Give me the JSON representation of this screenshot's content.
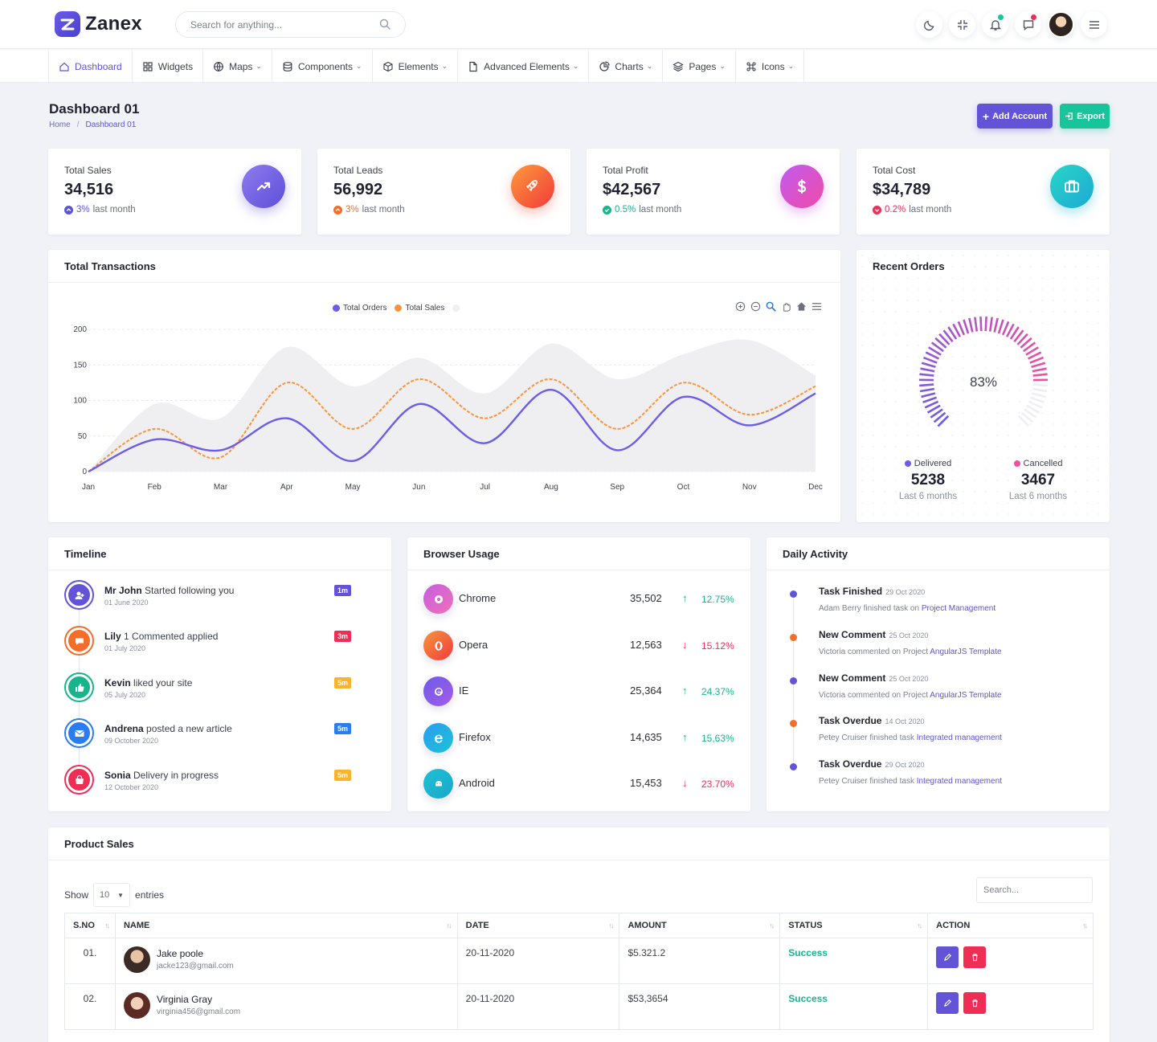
{
  "brand": {
    "name": "Zanex"
  },
  "header": {
    "search_placeholder": "Search for anything...",
    "accent": "#5c54d6"
  },
  "nav": [
    {
      "label": "Dashboard",
      "icon": "home-icon",
      "active": true
    },
    {
      "label": "Widgets",
      "icon": "grid-icon"
    },
    {
      "label": "Maps",
      "icon": "globe-icon"
    },
    {
      "label": "Components",
      "icon": "database-icon"
    },
    {
      "label": "Elements",
      "icon": "box-icon"
    },
    {
      "label": "Advanced Elements",
      "icon": "file-icon"
    },
    {
      "label": "Charts",
      "icon": "pie-chart-icon"
    },
    {
      "label": "Pages",
      "icon": "layers-icon"
    },
    {
      "label": "Icons",
      "icon": "command-icon"
    }
  ],
  "page": {
    "title": "Dashboard 01",
    "breadcrumb": [
      "Home",
      "Dashboard 01"
    ],
    "add_account": "Add Account",
    "export": "Export"
  },
  "stats": [
    {
      "label": "Total Sales",
      "value": "34,516",
      "change": "3%",
      "suffix": "last month",
      "trend": "up",
      "trend_color": "#5c54d6",
      "icon": "trending-up-icon"
    },
    {
      "label": "Total Leads",
      "value": "56,992",
      "change": "3%",
      "suffix": "last month",
      "trend": "up",
      "trend_color": "#f46e2a",
      "icon": "rocket-icon"
    },
    {
      "label": "Total Profit",
      "value": "$42,567",
      "change": "0.5%",
      "suffix": "last month",
      "trend": "check",
      "trend_color": "#18b58c",
      "icon": "dollar-icon"
    },
    {
      "label": "Total Cost",
      "value": "$34,789",
      "change": "0.2%",
      "suffix": "last month",
      "trend": "down",
      "trend_color": "#ef2e55",
      "icon": "briefcase-icon"
    }
  ],
  "transactions": {
    "title": "Total Transactions"
  },
  "chart_data": {
    "type": "line",
    "title": "",
    "categories": [
      "Jan",
      "Feb",
      "Mar",
      "Apr",
      "May",
      "Jun",
      "Jul",
      "Aug",
      "Sep",
      "Oct",
      "Nov",
      "Dec"
    ],
    "series": [
      {
        "name": "Total Orders",
        "color": "#6c5ce7",
        "values": [
          0,
          45,
          30,
          75,
          15,
          95,
          40,
          115,
          30,
          105,
          65,
          110
        ]
      },
      {
        "name": "Total Sales",
        "color": "#f7953c",
        "values": [
          0,
          60,
          20,
          125,
          60,
          130,
          75,
          130,
          60,
          125,
          80,
          120
        ]
      }
    ],
    "area_values": [
      0,
      95,
      75,
      175,
      120,
      160,
      110,
      180,
      130,
      165,
      185,
      135
    ],
    "yticks": [
      0,
      50,
      100,
      150,
      200
    ],
    "ylim": [
      0,
      200
    ],
    "xlabel": "",
    "ylabel": ""
  },
  "recent_orders": {
    "title": "Recent Orders",
    "percent_label": "83%",
    "percent": 83,
    "delivered": {
      "label": "Delivered",
      "value": "5238",
      "sub": "Last 6 months",
      "color": "#6c5ce7"
    },
    "cancelled": {
      "label": "Cancelled",
      "value": "3467",
      "sub": "Last 6 months",
      "color": "#f14fa0"
    }
  },
  "timeline": {
    "title": "Timeline",
    "items": [
      {
        "name": "Mr John",
        "text": "Started following you",
        "date": "01 June 2020",
        "badge": "1m",
        "badge_color": "#6354d7",
        "color": "#6354d7",
        "icon": "user-plus-icon"
      },
      {
        "name": "Lily",
        "text": "1 Commented applied",
        "date": "01 July 2020",
        "badge": "3m",
        "badge_color": "#ef2e55",
        "color": "#f46e2a",
        "icon": "chat-icon"
      },
      {
        "name": "Kevin",
        "text": "liked your site",
        "date": "05 July 2020",
        "badge": "5m",
        "badge_color": "#fbb32b",
        "color": "#18b58c",
        "icon": "thumbs-up-icon"
      },
      {
        "name": "Andrena",
        "text": "posted a new article",
        "date": "09 October 2020",
        "badge": "5m",
        "badge_color": "#2a7df0",
        "color": "#2a7df0",
        "icon": "mail-icon"
      },
      {
        "name": "Sonia",
        "text": "Delivery in progress",
        "date": "12 October 2020",
        "badge": "5m",
        "badge_color": "#fbb32b",
        "color": "#ef2e55",
        "icon": "bag-icon"
      }
    ]
  },
  "browser": {
    "title": "Browser Usage",
    "items": [
      {
        "name": "Chrome",
        "value": "35,502",
        "pct": "12.75%",
        "dir": "up",
        "color1": "#c45ee0",
        "color2": "#f070b8",
        "icon": "chrome-icon"
      },
      {
        "name": "Opera",
        "value": "12,563",
        "pct": "15.12%",
        "dir": "down",
        "color1": "#f7953c",
        "color2": "#ef3b3b",
        "icon": "opera-icon"
      },
      {
        "name": "IE",
        "value": "25,364",
        "pct": "24.37%",
        "dir": "up",
        "color1": "#6c5ce7",
        "color2": "#a35bea",
        "icon": "ie-icon"
      },
      {
        "name": "Firefox",
        "value": "14,635",
        "pct": "15,63%",
        "dir": "up",
        "color1": "#2a9df0",
        "color2": "#1ec2d6",
        "icon": "edge-icon"
      },
      {
        "name": "Android",
        "value": "15,453",
        "pct": "23.70%",
        "dir": "down",
        "color1": "#1ec2d6",
        "color2": "#1aa7c9",
        "icon": "android-icon"
      }
    ]
  },
  "activity": {
    "title": "Daily Activity",
    "items": [
      {
        "title": "Task Finished",
        "date": "29 Oct 2020",
        "text": "Adam Berry finished task on",
        "link": "Project Management",
        "dot": "#6354d7"
      },
      {
        "title": "New Comment",
        "date": "25 Oct 2020",
        "text": "Victoria commented on Project",
        "link": "AngularJS Template",
        "dot": "#f46e2a"
      },
      {
        "title": "New Comment",
        "date": "25 Oct 2020",
        "text": "Victoria commented on Project",
        "link": "AngularJS Template",
        "dot": "#6354d7"
      },
      {
        "title": "Task Overdue",
        "date": "14 Oct 2020",
        "text": "Petey Cruiser finished task",
        "link": "Integrated management",
        "dot": "#f46e2a"
      },
      {
        "title": "Task Overdue",
        "date": "29 Oct 2020",
        "text": "Petey Cruiser finished task",
        "link": "Integrated management",
        "dot": "#6354d7"
      }
    ]
  },
  "product_sales": {
    "title": "Product Sales",
    "show": "Show",
    "entries_value": "10",
    "entries": "entries",
    "search_placeholder": "Search...",
    "columns": [
      "S.NO",
      "NAME",
      "DATE",
      "AMOUNT",
      "STATUS",
      "ACTION"
    ],
    "rows": [
      {
        "sno": "01.",
        "name": "Jake poole",
        "email": "jacke123@gmail.com",
        "date": "20-11-2020",
        "amount": "$5.321.2",
        "status": "Success"
      },
      {
        "sno": "02.",
        "name": "Virginia Gray",
        "email": "virginia456@gmail.com",
        "date": "20-11-2020",
        "amount": "$53,3654",
        "status": "Success"
      }
    ]
  }
}
